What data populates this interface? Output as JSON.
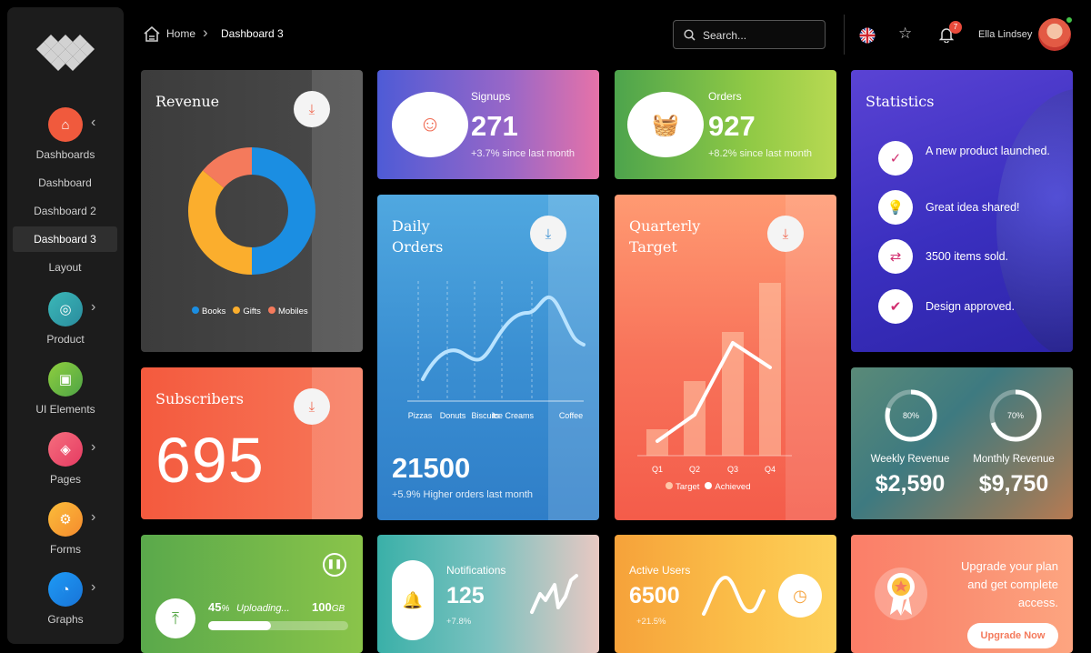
{
  "sidebar": {
    "dashboards_label": "Dashboards",
    "subitems": [
      "Dashboard",
      "Dashboard 2",
      "Dashboard 3",
      "Layout"
    ],
    "product_label": "Product",
    "ui_label": "UI Elements",
    "pages_label": "Pages",
    "forms_label": "Forms",
    "graphs_label": "Graphs"
  },
  "header": {
    "home": "Home",
    "current": "Dashboard 3",
    "search_placeholder": "Search...",
    "notif_count": "7",
    "user_name": "Ella Lindsey"
  },
  "revenue": {
    "title": "Revenue",
    "legend": [
      "Books",
      "Gifts",
      "Mobiles"
    ],
    "slices": [
      {
        "name": "Books",
        "value": 50,
        "color": "#1b8ee2"
      },
      {
        "name": "Gifts",
        "value": 36,
        "color": "#fbae2d"
      },
      {
        "name": "Mobiles",
        "value": 14,
        "color": "#f47a5c"
      }
    ]
  },
  "signups": {
    "label": "Signups",
    "value": "271",
    "sub": "+3.7% since last month"
  },
  "orders": {
    "label": "Orders",
    "value": "927",
    "sub": "+8.2% since last month"
  },
  "statistics": {
    "title": "Statistics",
    "items": [
      "A new product launched.",
      "Great idea shared!",
      "3500 items sold.",
      "Design approved."
    ]
  },
  "daily": {
    "title1": "Daily",
    "title2": "Orders",
    "categories": [
      "Pizzas",
      "Donuts",
      "Biscuits",
      "Ice Creams",
      "Coffee"
    ],
    "value": "21500",
    "sub": "+5.9% Higher orders last month"
  },
  "quarterly": {
    "title1": "Quarterly",
    "title2": "Target",
    "categories": [
      "Q1",
      "Q2",
      "Q3",
      "Q4"
    ],
    "legend": [
      "Target",
      "Achieved"
    ]
  },
  "subscribers": {
    "title": "Subscribers",
    "value": "695"
  },
  "weekly": {
    "pct": "80%",
    "progress": 80,
    "label": "Weekly Revenue",
    "value": "$2,590"
  },
  "monthly": {
    "pct": "70%",
    "progress": 70,
    "label": "Monthly Revenue",
    "value": "$9,750"
  },
  "upload": {
    "pct": "45",
    "pct_sign": "%",
    "text": "Uploading...",
    "size": "100",
    "unit": "GB",
    "progress": 45
  },
  "notifications": {
    "label": "Notifications",
    "value": "125",
    "sub": "+7.8%"
  },
  "active": {
    "label": "Active Users",
    "value": "6500",
    "sub": "+21.5%"
  },
  "upgrade": {
    "line1": "Upgrade your plan",
    "line2": "and get complete",
    "line3": "access.",
    "button": "Upgrade Now"
  },
  "colors": {
    "orange": "#f35c3d",
    "blue": "#1b8ee2",
    "purple": "#4a3ccc"
  }
}
